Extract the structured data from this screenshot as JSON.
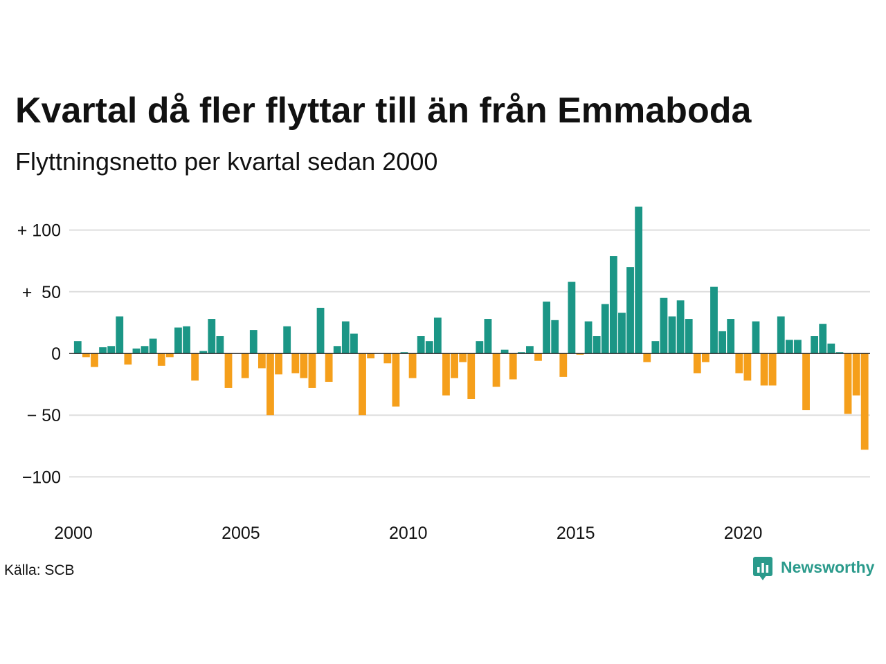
{
  "footer": {
    "source": "Källa: SCB",
    "logo_text": "Newsworthy",
    "logo_icon": "newsworthy-logo-icon"
  },
  "colors": {
    "positive": "#1b9686",
    "negative": "#f59f1b",
    "grid": "#dddddd",
    "zero_line": "#1a1a1a",
    "logo": "#2a9a8b"
  },
  "chart_data": {
    "type": "bar",
    "title": "Kvartal då fler flyttar till än från Emmaboda",
    "subtitle": "Flyttningsnetto per kvartal sedan 2000",
    "xlabel": "",
    "ylabel": "",
    "grid": true,
    "xlim": [
      "2000-Q1",
      "2023-Q4"
    ],
    "ylim": [
      -125,
      125
    ],
    "x_ticks": [
      "2000",
      "2005",
      "2010",
      "2015",
      "2020"
    ],
    "y_ticks": [
      {
        "value": 100,
        "label": "+ 100"
      },
      {
        "value": 50,
        "label": "+  50"
      },
      {
        "value": 0,
        "label": "0"
      },
      {
        "value": -50,
        "label": "− 50"
      },
      {
        "value": -100,
        "label": "−100"
      }
    ],
    "x": [
      "2000-Q1",
      "2000-Q2",
      "2000-Q3",
      "2000-Q4",
      "2001-Q1",
      "2001-Q2",
      "2001-Q3",
      "2001-Q4",
      "2002-Q1",
      "2002-Q2",
      "2002-Q3",
      "2002-Q4",
      "2003-Q1",
      "2003-Q2",
      "2003-Q3",
      "2003-Q4",
      "2004-Q1",
      "2004-Q2",
      "2004-Q3",
      "2004-Q4",
      "2005-Q1",
      "2005-Q2",
      "2005-Q3",
      "2005-Q4",
      "2006-Q1",
      "2006-Q2",
      "2006-Q3",
      "2006-Q4",
      "2007-Q1",
      "2007-Q2",
      "2007-Q3",
      "2007-Q4",
      "2008-Q1",
      "2008-Q2",
      "2008-Q3",
      "2008-Q4",
      "2009-Q1",
      "2009-Q2",
      "2009-Q3",
      "2009-Q4",
      "2010-Q1",
      "2010-Q2",
      "2010-Q3",
      "2010-Q4",
      "2011-Q1",
      "2011-Q2",
      "2011-Q3",
      "2011-Q4",
      "2012-Q1",
      "2012-Q2",
      "2012-Q3",
      "2012-Q4",
      "2013-Q1",
      "2013-Q2",
      "2013-Q3",
      "2013-Q4",
      "2014-Q1",
      "2014-Q2",
      "2014-Q3",
      "2014-Q4",
      "2015-Q1",
      "2015-Q2",
      "2015-Q3",
      "2015-Q4",
      "2016-Q1",
      "2016-Q2",
      "2016-Q3",
      "2016-Q4",
      "2017-Q1",
      "2017-Q2",
      "2017-Q3",
      "2017-Q4",
      "2018-Q1",
      "2018-Q2",
      "2018-Q3",
      "2018-Q4",
      "2019-Q1",
      "2019-Q2",
      "2019-Q3",
      "2019-Q4",
      "2020-Q1",
      "2020-Q2",
      "2020-Q3",
      "2020-Q4",
      "2021-Q1",
      "2021-Q2",
      "2021-Q3",
      "2021-Q4",
      "2022-Q1",
      "2022-Q2",
      "2022-Q3",
      "2022-Q4",
      "2023-Q1",
      "2023-Q2",
      "2023-Q3"
    ],
    "values": [
      10,
      -3,
      -11,
      5,
      6,
      30,
      -9,
      4,
      6,
      12,
      -10,
      -3,
      21,
      22,
      -22,
      2,
      28,
      14,
      -28,
      0,
      -20,
      19,
      -12,
      -50,
      -17,
      22,
      -16,
      -20,
      -28,
      37,
      -23,
      6,
      26,
      16,
      -50,
      -4,
      0,
      -8,
      -43,
      1,
      -20,
      14,
      10,
      29,
      -34,
      -20,
      -7,
      -37,
      10,
      28,
      -27,
      3,
      -21,
      1,
      6,
      -6,
      42,
      27,
      -19,
      58,
      -1,
      26,
      14,
      40,
      79,
      33,
      70,
      119,
      -7,
      10,
      45,
      30,
      43,
      28,
      -16,
      -7,
      54,
      18,
      28,
      -16,
      -22,
      26,
      -26,
      -26,
      30,
      11,
      11,
      -46,
      14,
      24,
      8,
      1,
      -49,
      -34,
      -78
    ]
  }
}
